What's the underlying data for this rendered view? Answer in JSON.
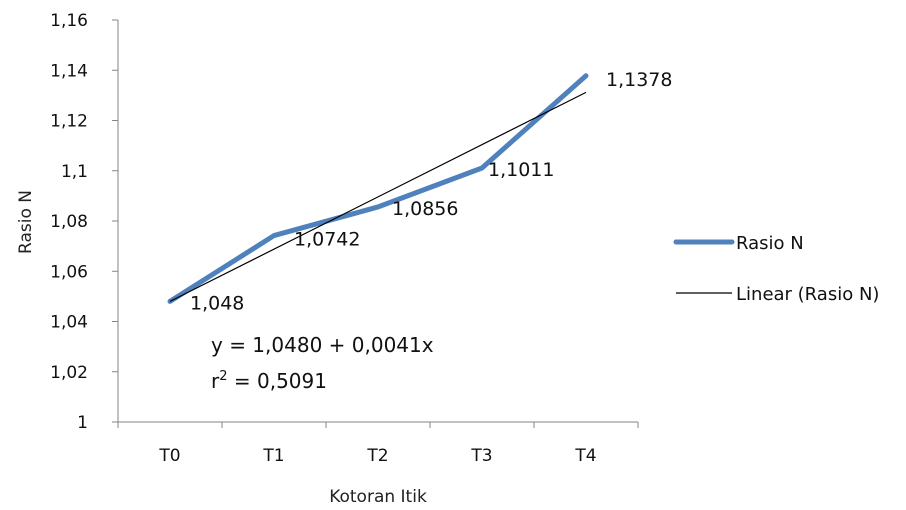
{
  "chart_data": {
    "type": "line",
    "title": "",
    "xlabel": "Kotoran Itik",
    "ylabel": "Rasio N",
    "categories": [
      "T0",
      "T1",
      "T2",
      "T3",
      "T4"
    ],
    "ylim": [
      1,
      1.16
    ],
    "yticks": [
      "1",
      "1,02",
      "1,04",
      "1,06",
      "1,08",
      "1,1",
      "1,12",
      "1,14",
      "1,16"
    ],
    "ytick_values": [
      1,
      1.02,
      1.04,
      1.06,
      1.08,
      1.1,
      1.12,
      1.14,
      1.16
    ],
    "grid": false,
    "legend_position": "right",
    "series": [
      {
        "name": "Rasio N",
        "values": [
          1.048,
          1.0742,
          1.0856,
          1.1011,
          1.1378
        ],
        "data_labels": [
          "1,048",
          "1,0742",
          "1,0856",
          "1,1011",
          "1,1378"
        ],
        "color": "#4f81bd"
      }
    ],
    "trendline": {
      "name": "Linear (Rasio N)",
      "values": [
        1.048,
        1.0688,
        1.0896,
        1.1104,
        1.1312
      ],
      "color": "#000000"
    },
    "equation": {
      "text": "y = 1,0480 + 0,0041x",
      "r2_prefix": "r",
      "r2_sup": "2",
      "r2_value": " = 0,5091"
    }
  }
}
